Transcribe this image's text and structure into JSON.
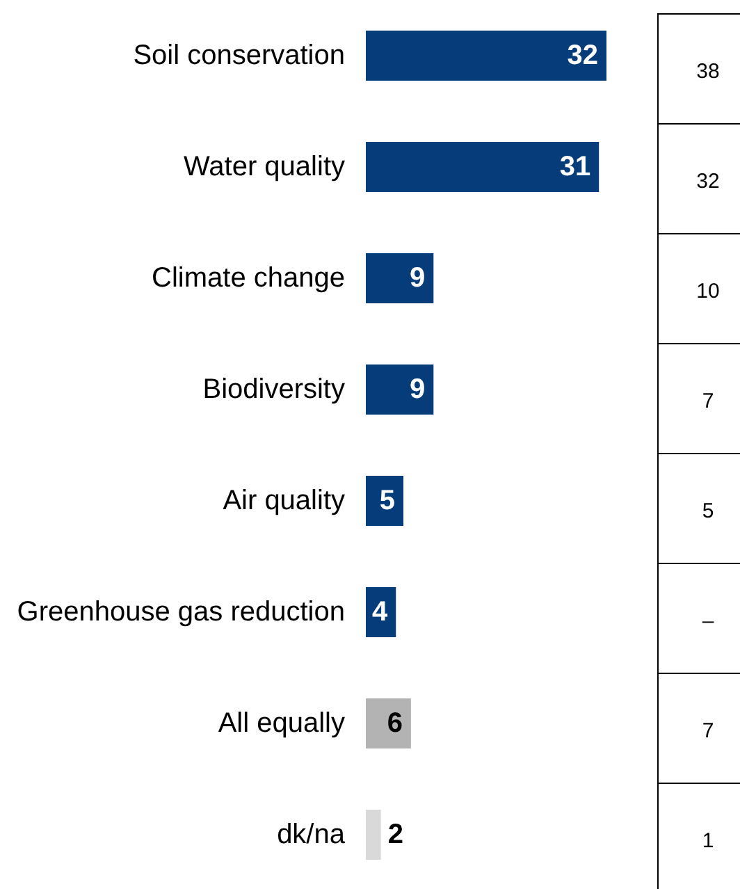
{
  "chart_data": [
    {
      "type": "bar",
      "orientation": "horizontal",
      "categories": [
        "Soil conservation",
        "Water quality",
        "Climate change",
        "Biodiversity",
        "Air quality",
        "Greenhouse gas reduction",
        "All equally",
        "dk/na"
      ],
      "values": [
        32,
        31,
        9,
        9,
        5,
        4,
        6,
        2
      ],
      "colors": [
        "#063c7a",
        "#063c7a",
        "#063c7a",
        "#063c7a",
        "#063c7a",
        "#063c7a",
        "#b3b3b3",
        "#d9d9d9"
      ],
      "data_labels": true
    },
    {
      "type": "other",
      "annotations": [
        "38",
        "32",
        "10",
        "7",
        "5",
        "–",
        "7",
        "1"
      ]
    }
  ]
}
